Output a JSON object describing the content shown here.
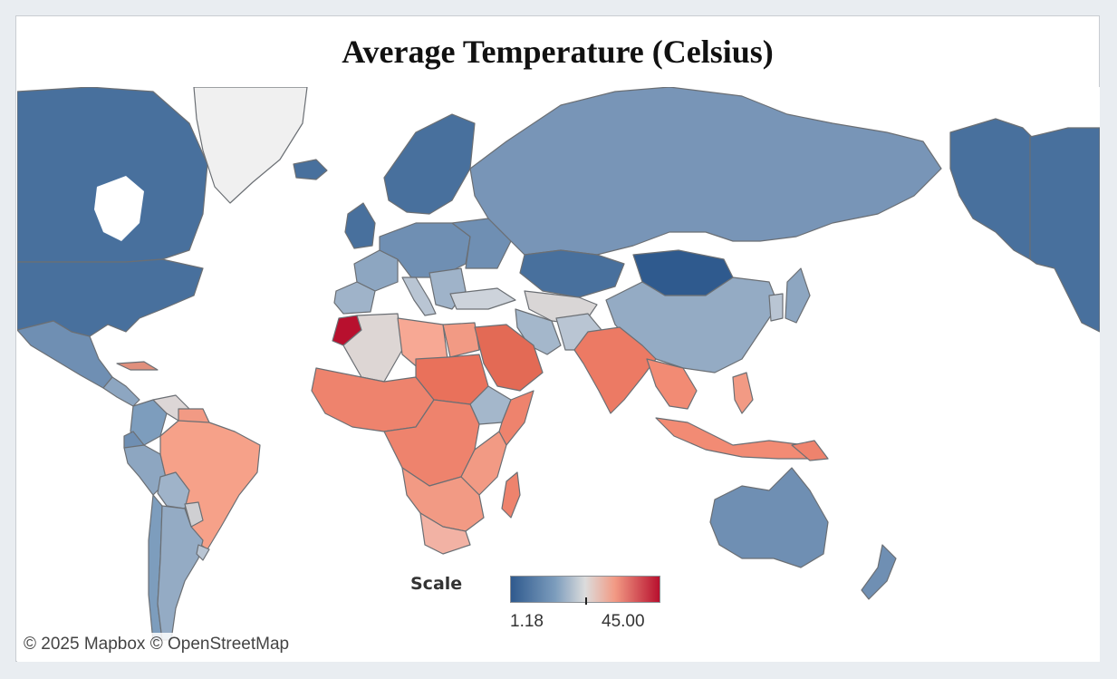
{
  "title": "Average Temperature (Celsius)",
  "legend": {
    "label": "Scale",
    "min": "1.18",
    "max": "45.00",
    "colors": [
      "#2f5a8e",
      "#7d9dbd",
      "#dcdcdc",
      "#f29a84",
      "#b8102e"
    ]
  },
  "attribution": "© 2025 Mapbox © OpenStreetMap",
  "map": {
    "type": "choropleth",
    "scale_min": 1.18,
    "scale_max": 45.0
  }
}
